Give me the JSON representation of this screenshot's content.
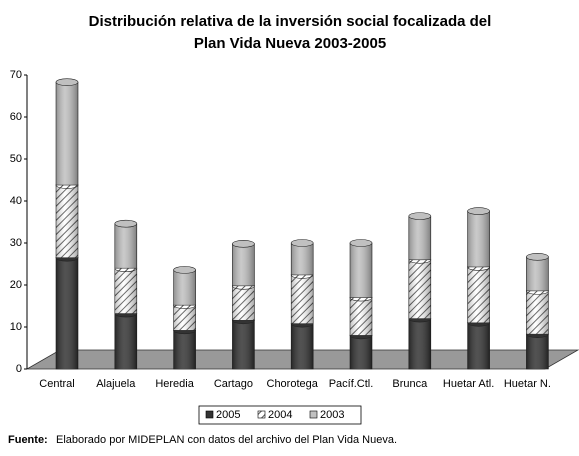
{
  "chart_data": {
    "type": "bar",
    "stacked": true,
    "title": [
      "Distribución relativa de la inversión social focalizada del",
      "Plan Vida Nueva 2003-2005"
    ],
    "categories": [
      "Central",
      "Alajuela",
      "Heredia",
      "Cartago",
      "Chorotega",
      "Pacíf.Ctl.",
      "Brunca",
      "Huetar Atl.",
      "Huetar N."
    ],
    "series": [
      {
        "name": "2005",
        "color": "#333333",
        "values": [
          26.5,
          13.2,
          9.2,
          11.6,
          10.8,
          8,
          12,
          11,
          8.3
        ]
      },
      {
        "name": "2004",
        "color": "hatch",
        "values": [
          17.3,
          10.8,
          6,
          8.2,
          11.6,
          9,
          14,
          13.3,
          10.3
        ]
      },
      {
        "name": "2003",
        "color": "#c0c0c0",
        "values": [
          24.5,
          10.6,
          8.4,
          10,
          7.6,
          13,
          10.4,
          13.3,
          8.1
        ]
      }
    ],
    "ylim": [
      0,
      70
    ],
    "yticks": [
      0,
      10,
      20,
      30,
      40,
      50,
      60,
      70
    ],
    "legend": "bottom",
    "source": {
      "label": "Fuente:",
      "text": "Elaborado por MIDEPLAN con datos del archivo del Plan Vida Nueva."
    }
  }
}
